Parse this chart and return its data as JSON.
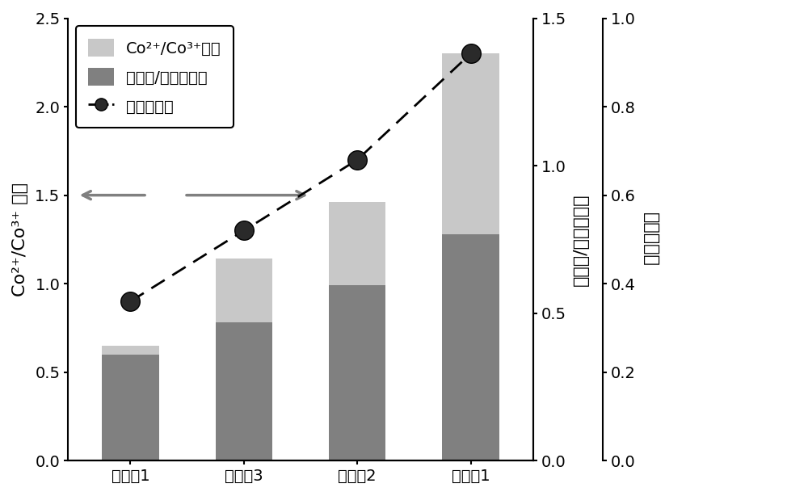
{
  "categories": [
    "对比例1",
    "实施例3",
    "实施例2",
    "实施例1"
  ],
  "dark_bars": [
    0.6,
    0.78,
    0.99,
    1.28
  ],
  "total_bars": [
    0.65,
    1.14,
    1.46,
    2.3
  ],
  "oxygen_vacancy_concentration": [
    0.36,
    0.52,
    0.68,
    0.92
  ],
  "dark_bar_color": "#808080",
  "light_bar_color": "#c8c8c8",
  "left_ylabel": "Co²⁺/Co³⁺ 比例",
  "mid_ylabel": "氧空位/晶格氧比例",
  "right_ylabel": "氧空位浓度",
  "left_ylim": [
    0,
    2.5
  ],
  "mid_ylim": [
    0,
    1.5
  ],
  "right_ylim": [
    0,
    1.0
  ],
  "left_yticks": [
    0.0,
    0.5,
    1.0,
    1.5,
    2.0,
    2.5
  ],
  "mid_yticks": [
    0.0,
    0.5,
    1.0,
    1.5
  ],
  "right_yticks": [
    0.0,
    0.2,
    0.4,
    0.6,
    0.8,
    1.0
  ],
  "legend_label_co": "Co²⁺/Co³⁺比例",
  "legend_label_ov": "氧空位/晶格氧比例",
  "legend_label_line": "氧空位浓度",
  "background_color": "#ffffff",
  "bar_width": 0.5
}
